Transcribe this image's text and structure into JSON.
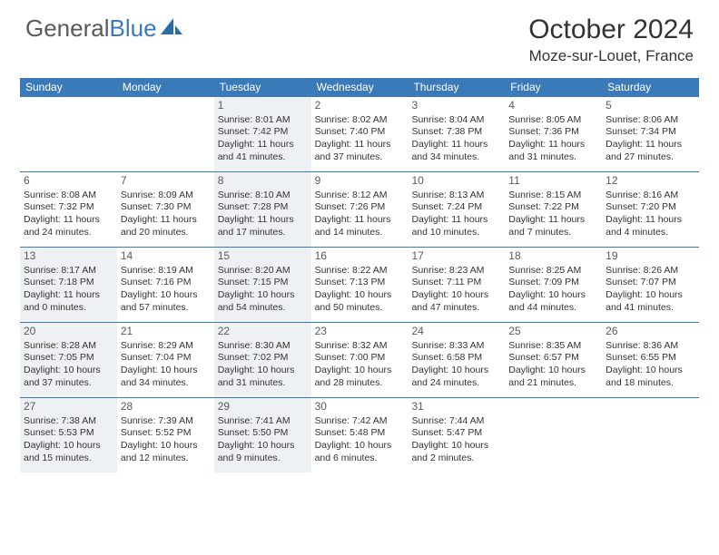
{
  "brand": {
    "part1": "General",
    "part2": "Blue"
  },
  "title": "October 2024",
  "location": "Moze-sur-Louet, France",
  "colors": {
    "header_bg": "#3a7ab8",
    "shade_bg": "#eef1f3",
    "text": "#333333",
    "border": "#3a7ab8"
  },
  "dow": [
    "Sunday",
    "Monday",
    "Tuesday",
    "Wednesday",
    "Thursday",
    "Friday",
    "Saturday"
  ],
  "weeks": [
    [
      {
        "n": "",
        "shaded": false,
        "lines": []
      },
      {
        "n": "",
        "shaded": false,
        "lines": []
      },
      {
        "n": "1",
        "shaded": true,
        "lines": [
          "Sunrise: 8:01 AM",
          "Sunset: 7:42 PM",
          "Daylight: 11 hours and 41 minutes."
        ]
      },
      {
        "n": "2",
        "shaded": false,
        "lines": [
          "Sunrise: 8:02 AM",
          "Sunset: 7:40 PM",
          "Daylight: 11 hours and 37 minutes."
        ]
      },
      {
        "n": "3",
        "shaded": false,
        "lines": [
          "Sunrise: 8:04 AM",
          "Sunset: 7:38 PM",
          "Daylight: 11 hours and 34 minutes."
        ]
      },
      {
        "n": "4",
        "shaded": false,
        "lines": [
          "Sunrise: 8:05 AM",
          "Sunset: 7:36 PM",
          "Daylight: 11 hours and 31 minutes."
        ]
      },
      {
        "n": "5",
        "shaded": false,
        "lines": [
          "Sunrise: 8:06 AM",
          "Sunset: 7:34 PM",
          "Daylight: 11 hours and 27 minutes."
        ]
      }
    ],
    [
      {
        "n": "6",
        "shaded": false,
        "lines": [
          "Sunrise: 8:08 AM",
          "Sunset: 7:32 PM",
          "Daylight: 11 hours and 24 minutes."
        ]
      },
      {
        "n": "7",
        "shaded": false,
        "lines": [
          "Sunrise: 8:09 AM",
          "Sunset: 7:30 PM",
          "Daylight: 11 hours and 20 minutes."
        ]
      },
      {
        "n": "8",
        "shaded": true,
        "lines": [
          "Sunrise: 8:10 AM",
          "Sunset: 7:28 PM",
          "Daylight: 11 hours and 17 minutes."
        ]
      },
      {
        "n": "9",
        "shaded": false,
        "lines": [
          "Sunrise: 8:12 AM",
          "Sunset: 7:26 PM",
          "Daylight: 11 hours and 14 minutes."
        ]
      },
      {
        "n": "10",
        "shaded": false,
        "lines": [
          "Sunrise: 8:13 AM",
          "Sunset: 7:24 PM",
          "Daylight: 11 hours and 10 minutes."
        ]
      },
      {
        "n": "11",
        "shaded": false,
        "lines": [
          "Sunrise: 8:15 AM",
          "Sunset: 7:22 PM",
          "Daylight: 11 hours and 7 minutes."
        ]
      },
      {
        "n": "12",
        "shaded": false,
        "lines": [
          "Sunrise: 8:16 AM",
          "Sunset: 7:20 PM",
          "Daylight: 11 hours and 4 minutes."
        ]
      }
    ],
    [
      {
        "n": "13",
        "shaded": true,
        "lines": [
          "Sunrise: 8:17 AM",
          "Sunset: 7:18 PM",
          "Daylight: 11 hours and 0 minutes."
        ]
      },
      {
        "n": "14",
        "shaded": false,
        "lines": [
          "Sunrise: 8:19 AM",
          "Sunset: 7:16 PM",
          "Daylight: 10 hours and 57 minutes."
        ]
      },
      {
        "n": "15",
        "shaded": true,
        "lines": [
          "Sunrise: 8:20 AM",
          "Sunset: 7:15 PM",
          "Daylight: 10 hours and 54 minutes."
        ]
      },
      {
        "n": "16",
        "shaded": false,
        "lines": [
          "Sunrise: 8:22 AM",
          "Sunset: 7:13 PM",
          "Daylight: 10 hours and 50 minutes."
        ]
      },
      {
        "n": "17",
        "shaded": false,
        "lines": [
          "Sunrise: 8:23 AM",
          "Sunset: 7:11 PM",
          "Daylight: 10 hours and 47 minutes."
        ]
      },
      {
        "n": "18",
        "shaded": false,
        "lines": [
          "Sunrise: 8:25 AM",
          "Sunset: 7:09 PM",
          "Daylight: 10 hours and 44 minutes."
        ]
      },
      {
        "n": "19",
        "shaded": false,
        "lines": [
          "Sunrise: 8:26 AM",
          "Sunset: 7:07 PM",
          "Daylight: 10 hours and 41 minutes."
        ]
      }
    ],
    [
      {
        "n": "20",
        "shaded": true,
        "lines": [
          "Sunrise: 8:28 AM",
          "Sunset: 7:05 PM",
          "Daylight: 10 hours and 37 minutes."
        ]
      },
      {
        "n": "21",
        "shaded": false,
        "lines": [
          "Sunrise: 8:29 AM",
          "Sunset: 7:04 PM",
          "Daylight: 10 hours and 34 minutes."
        ]
      },
      {
        "n": "22",
        "shaded": true,
        "lines": [
          "Sunrise: 8:30 AM",
          "Sunset: 7:02 PM",
          "Daylight: 10 hours and 31 minutes."
        ]
      },
      {
        "n": "23",
        "shaded": false,
        "lines": [
          "Sunrise: 8:32 AM",
          "Sunset: 7:00 PM",
          "Daylight: 10 hours and 28 minutes."
        ]
      },
      {
        "n": "24",
        "shaded": false,
        "lines": [
          "Sunrise: 8:33 AM",
          "Sunset: 6:58 PM",
          "Daylight: 10 hours and 24 minutes."
        ]
      },
      {
        "n": "25",
        "shaded": false,
        "lines": [
          "Sunrise: 8:35 AM",
          "Sunset: 6:57 PM",
          "Daylight: 10 hours and 21 minutes."
        ]
      },
      {
        "n": "26",
        "shaded": false,
        "lines": [
          "Sunrise: 8:36 AM",
          "Sunset: 6:55 PM",
          "Daylight: 10 hours and 18 minutes."
        ]
      }
    ],
    [
      {
        "n": "27",
        "shaded": true,
        "lines": [
          "Sunrise: 7:38 AM",
          "Sunset: 5:53 PM",
          "Daylight: 10 hours and 15 minutes."
        ]
      },
      {
        "n": "28",
        "shaded": false,
        "lines": [
          "Sunrise: 7:39 AM",
          "Sunset: 5:52 PM",
          "Daylight: 10 hours and 12 minutes."
        ]
      },
      {
        "n": "29",
        "shaded": true,
        "lines": [
          "Sunrise: 7:41 AM",
          "Sunset: 5:50 PM",
          "Daylight: 10 hours and 9 minutes."
        ]
      },
      {
        "n": "30",
        "shaded": false,
        "lines": [
          "Sunrise: 7:42 AM",
          "Sunset: 5:48 PM",
          "Daylight: 10 hours and 6 minutes."
        ]
      },
      {
        "n": "31",
        "shaded": false,
        "lines": [
          "Sunrise: 7:44 AM",
          "Sunset: 5:47 PM",
          "Daylight: 10 hours and 2 minutes."
        ]
      },
      {
        "n": "",
        "shaded": false,
        "lines": []
      },
      {
        "n": "",
        "shaded": false,
        "lines": []
      }
    ]
  ]
}
